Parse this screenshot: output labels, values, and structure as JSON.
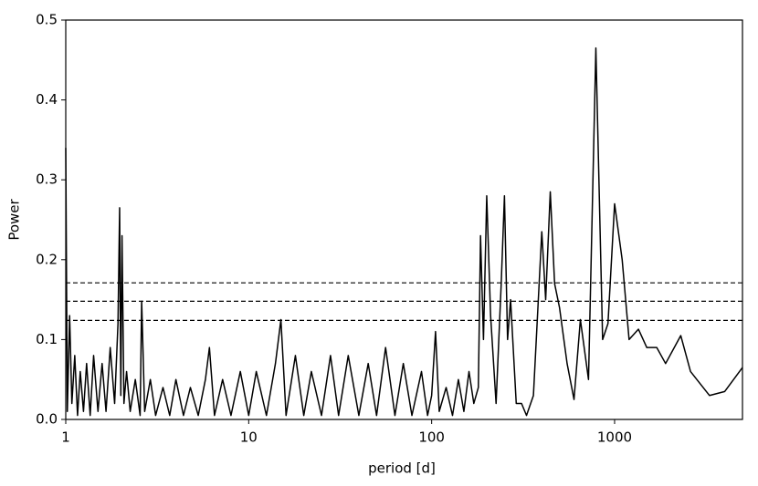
{
  "chart_data": {
    "type": "line",
    "xlabel": "period [d]",
    "ylabel": "Power",
    "xscale": "log",
    "xlim": [
      1,
      5000
    ],
    "ylim": [
      0,
      0.5
    ],
    "xticks": [
      1,
      10,
      100,
      1000
    ],
    "yticks": [
      {
        "value": 0,
        "label": "0.0"
      },
      0.1,
      0.2,
      0.3,
      0.4,
      0.5
    ],
    "fap_levels": [
      0.171,
      0.148,
      0.124
    ],
    "series": [
      {
        "color": "#000000",
        "x": [
          1,
          1.02,
          1.05,
          1.08,
          1.12,
          1.16,
          1.2,
          1.25,
          1.3,
          1.36,
          1.42,
          1.5,
          1.58,
          1.66,
          1.75,
          1.85,
          1.93,
          1.97,
          2.0,
          2.03,
          2.08,
          2.15,
          2.25,
          2.4,
          2.55,
          2.6,
          2.7,
          2.9,
          3.1,
          3.4,
          3.7,
          4.0,
          4.4,
          4.8,
          5.3,
          5.8,
          6.1,
          6.5,
          7.2,
          8,
          9,
          10,
          11,
          12.5,
          14,
          15,
          16,
          18,
          20,
          22,
          25,
          28,
          31,
          35,
          40,
          45,
          50,
          56,
          63,
          70,
          78,
          88,
          95,
          100,
          105,
          110,
          120,
          130,
          140,
          150,
          160,
          170,
          180,
          185,
          192,
          200,
          210,
          225,
          240,
          250,
          260,
          270,
          290,
          310,
          330,
          360,
          400,
          420,
          445,
          470,
          500,
          550,
          600,
          650,
          720,
          790,
          860,
          920,
          1000,
          1100,
          1200,
          1350,
          1500,
          1700,
          1900,
          2300,
          2600,
          3300,
          4000,
          5000
        ],
        "values": [
          0.34,
          0.01,
          0.13,
          0.02,
          0.08,
          0.005,
          0.06,
          0.01,
          0.07,
          0.005,
          0.08,
          0.01,
          0.07,
          0.01,
          0.09,
          0.02,
          0.12,
          0.265,
          0.03,
          0.23,
          0.02,
          0.06,
          0.01,
          0.05,
          0.005,
          0.148,
          0.01,
          0.05,
          0.005,
          0.04,
          0.005,
          0.05,
          0.005,
          0.04,
          0.005,
          0.05,
          0.09,
          0.005,
          0.05,
          0.005,
          0.06,
          0.005,
          0.06,
          0.005,
          0.07,
          0.125,
          0.005,
          0.08,
          0.005,
          0.06,
          0.005,
          0.08,
          0.005,
          0.08,
          0.005,
          0.07,
          0.005,
          0.09,
          0.005,
          0.07,
          0.005,
          0.06,
          0.005,
          0.03,
          0.11,
          0.01,
          0.04,
          0.005,
          0.05,
          0.01,
          0.06,
          0.02,
          0.04,
          0.23,
          0.1,
          0.28,
          0.13,
          0.02,
          0.17,
          0.28,
          0.1,
          0.15,
          0.02,
          0.02,
          0.005,
          0.03,
          0.235,
          0.15,
          0.285,
          0.17,
          0.14,
          0.07,
          0.025,
          0.125,
          0.05,
          0.465,
          0.1,
          0.12,
          0.27,
          0.2,
          0.1,
          0.113,
          0.09,
          0.09,
          0.07,
          0.105,
          0.06,
          0.03,
          0.035,
          0.065
        ]
      }
    ]
  }
}
